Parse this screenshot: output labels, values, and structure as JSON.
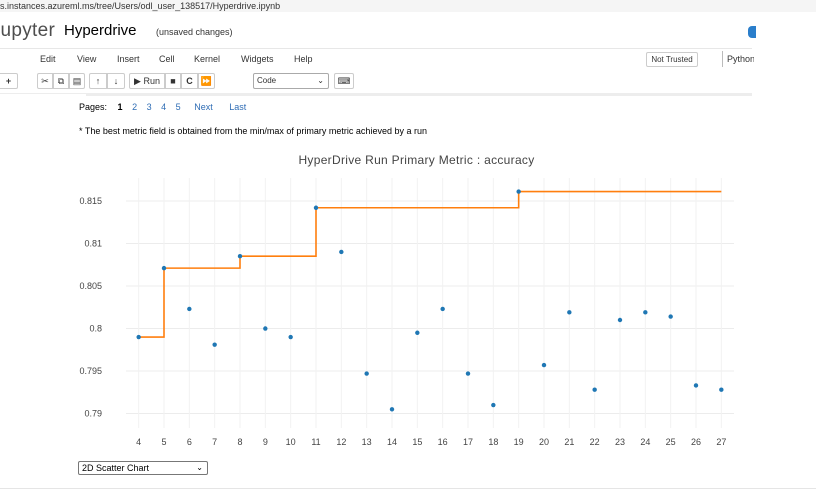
{
  "browser": {
    "url": "s.instances.azureml.ms/tree/Users/odl_user_138517/Hyperdrive.ipynb"
  },
  "header": {
    "logo": "jupyter",
    "notebook_name": "Hyperdrive",
    "save_status": "(unsaved changes)",
    "accent_color": "#2a7ecb"
  },
  "menubar": {
    "items": [
      "Edit",
      "View",
      "Insert",
      "Cell",
      "Kernel",
      "Widgets",
      "Help"
    ],
    "trust_label": "Not Trusted",
    "kernel_label": "Python"
  },
  "toolbar": {
    "run_label": "Run",
    "cell_type": "Code",
    "icons": [
      "add-icon",
      "cut-icon",
      "copy-icon",
      "paste-icon",
      "move-up-icon",
      "move-down-icon",
      "run-icon",
      "stop-icon",
      "restart-icon",
      "fast-forward-icon",
      "keyboard-icon"
    ]
  },
  "pagination": {
    "label": "Pages:",
    "pages": [
      "1",
      "2",
      "3",
      "4",
      "5"
    ],
    "current": "1",
    "next_label": "Next",
    "last_label": "Last"
  },
  "note": "* The best metric field is obtained from the min/max of primary metric achieved by a run",
  "chart_view_select": "2D Scatter Chart",
  "chart_data": {
    "type": "scatter",
    "title": "HyperDrive Run Primary Metric : accuracy",
    "xlabel": "",
    "ylabel": "",
    "x_ticks": [
      "4",
      "5",
      "6",
      "7",
      "8",
      "9",
      "10",
      "11",
      "12",
      "13",
      "14",
      "15",
      "16",
      "17",
      "18",
      "19",
      "20",
      "21",
      "22",
      "23",
      "24",
      "25",
      "26",
      "27"
    ],
    "y_ticks": [
      "0.79",
      "0.795",
      "0.8",
      "0.805",
      "0.81",
      "0.815"
    ],
    "xlim": [
      3.5,
      27.5
    ],
    "ylim": [
      0.7883,
      0.8177
    ],
    "grid": true,
    "series": [
      {
        "type": "scatter",
        "color": "#1f77b4",
        "x": [
          4,
          5,
          6,
          7,
          8,
          9,
          10,
          11,
          12,
          13,
          14,
          15,
          16,
          17,
          18,
          19,
          20,
          21,
          22,
          23,
          24,
          25,
          26,
          27
        ],
        "y": [
          0.799,
          0.8071,
          0.8023,
          0.7981,
          0.8085,
          0.8,
          0.799,
          0.8142,
          0.809,
          0.7947,
          0.7905,
          0.7995,
          0.8023,
          0.7947,
          0.791,
          0.8161,
          0.7957,
          0.8019,
          0.7928,
          0.801,
          0.8019,
          0.8014,
          0.7933,
          0.7928
        ]
      },
      {
        "type": "step-line",
        "color": "#ff7f0e",
        "x": [
          4,
          5,
          6,
          7,
          8,
          9,
          10,
          11,
          12,
          13,
          14,
          15,
          16,
          17,
          18,
          19,
          20,
          21,
          22,
          23,
          24,
          25,
          26,
          27
        ],
        "y": [
          0.799,
          0.8071,
          0.8071,
          0.8071,
          0.8085,
          0.8085,
          0.8085,
          0.8142,
          0.8142,
          0.8142,
          0.8142,
          0.8142,
          0.8142,
          0.8142,
          0.8142,
          0.8161,
          0.8161,
          0.8161,
          0.8161,
          0.8161,
          0.8161,
          0.8161,
          0.8161,
          0.8161
        ]
      }
    ]
  }
}
